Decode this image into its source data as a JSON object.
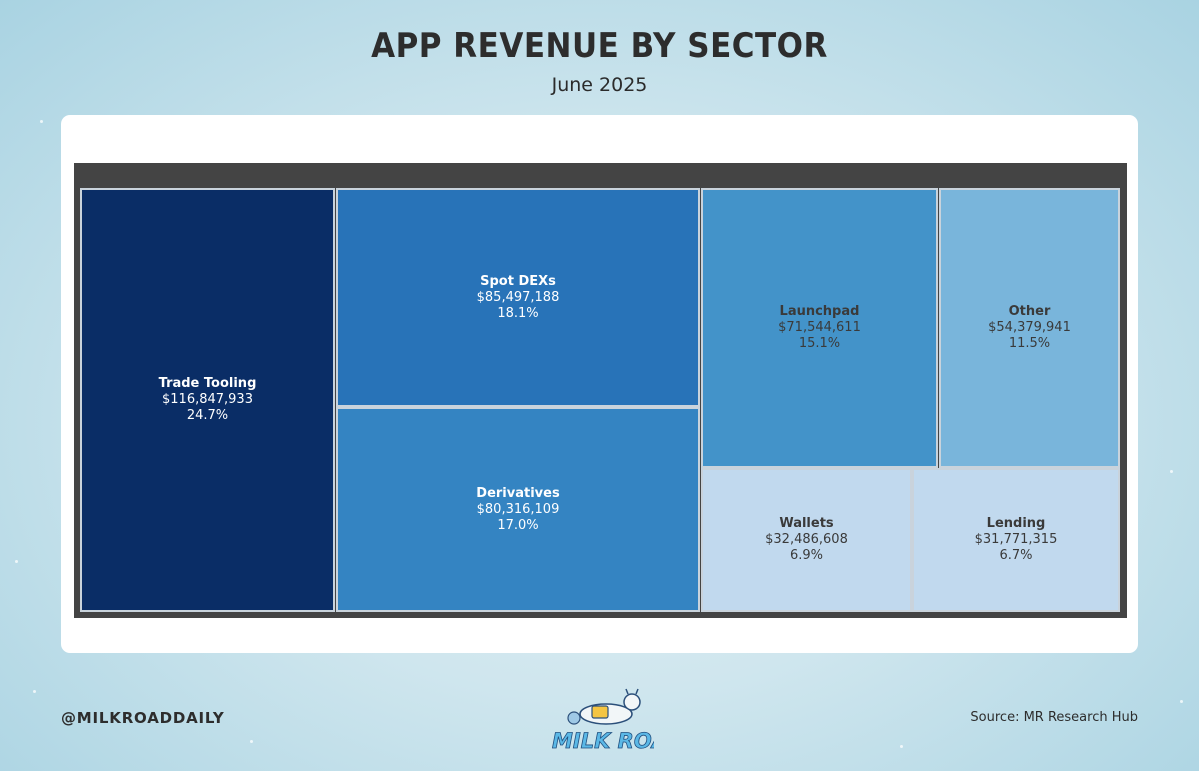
{
  "header": {
    "title": "APP REVENUE BY SECTOR",
    "subtitle": "June 2025"
  },
  "chart_data": {
    "type": "treemap",
    "title": "APP REVENUE BY SECTOR",
    "subtitle": "June 2025",
    "items": [
      {
        "name": "Trade Tooling",
        "value": 116847933,
        "value_label": "$116,847,933",
        "percent": "24.7%",
        "color": "#0a2d66"
      },
      {
        "name": "Spot DEXs",
        "value": 85497188,
        "value_label": "$85,497,188",
        "percent": "18.1%",
        "color": "#2873b8"
      },
      {
        "name": "Derivatives",
        "value": 80316109,
        "value_label": "$80,316,109",
        "percent": "17.0%",
        "color": "#3484c2"
      },
      {
        "name": "Launchpad",
        "value": 71544611,
        "value_label": "$71,544,611",
        "percent": "15.1%",
        "color": "#4393c9"
      },
      {
        "name": "Other",
        "value": 54379941,
        "value_label": "$54,379,941",
        "percent": "11.5%",
        "color": "#79b5db"
      },
      {
        "name": "Wallets",
        "value": 32486608,
        "value_label": "$32,486,608",
        "percent": "6.9%",
        "color": "#c1d9ee"
      },
      {
        "name": "Lending",
        "value": 31771315,
        "value_label": "$31,771,315",
        "percent": "6.7%",
        "color": "#c1d9ee"
      }
    ]
  },
  "footer": {
    "handle": "@MILKROADDAILY",
    "source": "Source: MR Research Hub",
    "logo_text": "MILK ROAD"
  }
}
